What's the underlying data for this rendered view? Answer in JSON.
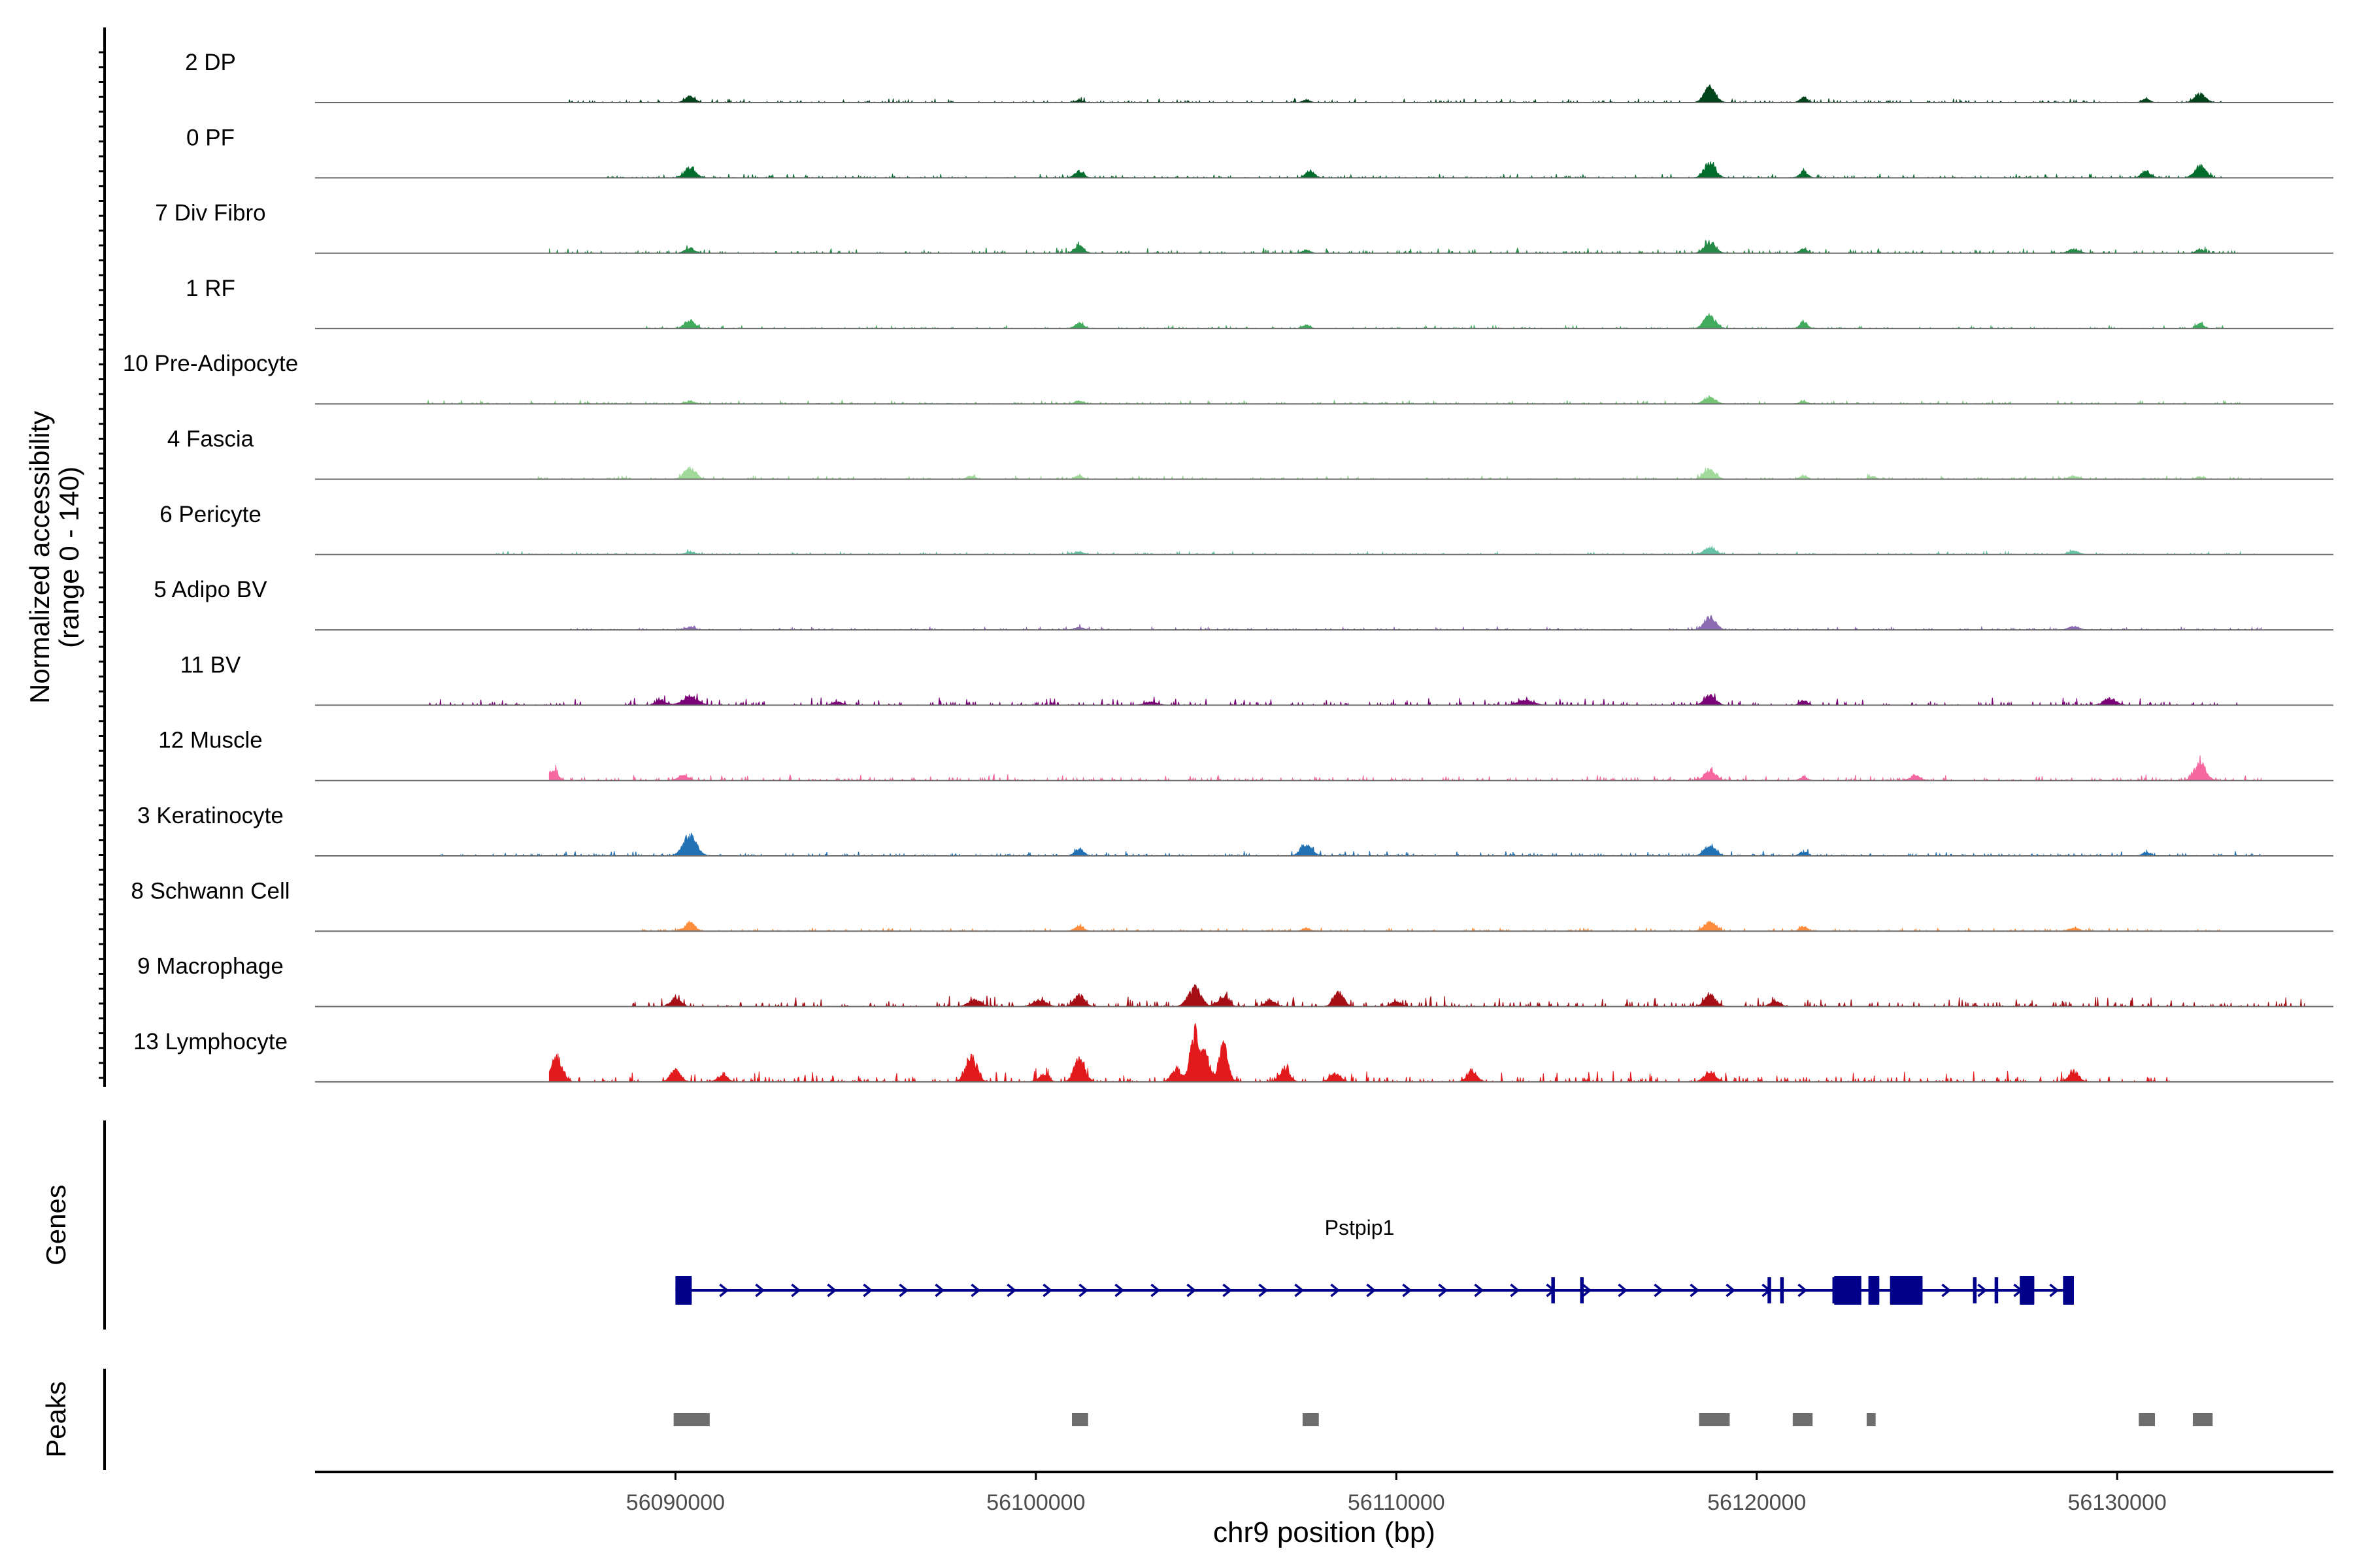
{
  "chart_data": {
    "type": "coverage",
    "region": {
      "chromosome": "chr9",
      "start": 56080000,
      "end": 56136000
    },
    "y_label_line1": "Normalized accessibility",
    "y_label_line2": "(range 0 - 140)",
    "y_range": [
      0,
      140
    ],
    "x_label": "chr9 position (bp)",
    "x_ticks": [
      {
        "value": 56090000,
        "label": "56090000"
      },
      {
        "value": 56100000,
        "label": "56100000"
      },
      {
        "value": 56110000,
        "label": "56110000"
      },
      {
        "value": 56120000,
        "label": "56120000"
      },
      {
        "value": 56130000,
        "label": "56130000"
      }
    ],
    "tracks": [
      {
        "name": "2 DP",
        "color": "#00441b",
        "segment": [
          56087000,
          56133000
        ],
        "noise": 1.2,
        "peaks": [
          [
            56090400,
            3.5,
            200
          ],
          [
            56101200,
            1.5,
            150
          ],
          [
            56107500,
            1.5,
            150
          ],
          [
            56118700,
            9,
            220
          ],
          [
            56121300,
            3,
            150
          ],
          [
            56130800,
            2,
            150
          ],
          [
            56132300,
            5,
            220
          ]
        ]
      },
      {
        "name": "0 PF",
        "color": "#006d2c",
        "segment": [
          56088000,
          56133000
        ],
        "noise": 1.2,
        "peaks": [
          [
            56090400,
            6,
            220
          ],
          [
            56101200,
            4,
            180
          ],
          [
            56107600,
            4,
            180
          ],
          [
            56118700,
            9,
            220
          ],
          [
            56121300,
            4,
            150
          ],
          [
            56130800,
            4,
            180
          ],
          [
            56132300,
            7,
            220
          ]
        ]
      },
      {
        "name": "7 Div Fibro",
        "color": "#238b45",
        "segment": [
          56086500,
          56133500
        ],
        "noise": 1.6,
        "peaks": [
          [
            56090400,
            3,
            200
          ],
          [
            56101200,
            5,
            180
          ],
          [
            56107500,
            2,
            150
          ],
          [
            56118700,
            6,
            220
          ],
          [
            56121300,
            2.5,
            150
          ],
          [
            56128800,
            2.5,
            200
          ],
          [
            56132300,
            2.5,
            150
          ]
        ]
      },
      {
        "name": "1 RF",
        "color": "#41ab5d",
        "segment": [
          56089000,
          56133000
        ],
        "noise": 0.9,
        "peaks": [
          [
            56090400,
            5,
            200
          ],
          [
            56101200,
            3,
            180
          ],
          [
            56107500,
            2,
            150
          ],
          [
            56118700,
            8,
            220
          ],
          [
            56121300,
            4,
            150
          ],
          [
            56132300,
            3,
            150
          ]
        ]
      },
      {
        "name": "10 Pre-Adipocyte",
        "color": "#74c476",
        "segment": [
          56083000,
          56133500
        ],
        "noise": 1.0,
        "peaks": [
          [
            56090400,
            1.5,
            200
          ],
          [
            56101200,
            1.5,
            180
          ],
          [
            56118700,
            4,
            220
          ],
          [
            56121300,
            1.5,
            150
          ]
        ]
      },
      {
        "name": "4 Fascia",
        "color": "#a1d99b",
        "segment": [
          56086000,
          56134000
        ],
        "noise": 1.1,
        "peaks": [
          [
            56090400,
            7,
            220
          ],
          [
            56098200,
            2,
            150
          ],
          [
            56101200,
            2,
            150
          ],
          [
            56118700,
            6,
            220
          ],
          [
            56121300,
            2,
            150
          ],
          [
            56123200,
            1.5,
            150
          ],
          [
            56128800,
            2,
            200
          ],
          [
            56132300,
            1.5,
            150
          ]
        ]
      },
      {
        "name": "6 Pericyte",
        "color": "#66c2a4",
        "segment": [
          56085000,
          56134000
        ],
        "noise": 0.9,
        "peaks": [
          [
            56090400,
            1.5,
            200
          ],
          [
            56101200,
            1.5,
            180
          ],
          [
            56118700,
            4,
            220
          ],
          [
            56128800,
            2,
            200
          ]
        ]
      },
      {
        "name": "5 Adipo BV",
        "color": "#8c6bb1",
        "segment": [
          56087000,
          56134000
        ],
        "noise": 0.9,
        "peaks": [
          [
            56090400,
            1.5,
            200
          ],
          [
            56101200,
            1.5,
            180
          ],
          [
            56118700,
            8,
            220
          ],
          [
            56128800,
            2,
            200
          ]
        ]
      },
      {
        "name": "11 BV",
        "color": "#7a0177",
        "segment": [
          56083000,
          56133500
        ],
        "noise": 2.2,
        "peaks": [
          [
            56090400,
            5,
            300
          ],
          [
            56089600,
            3,
            200
          ],
          [
            56094500,
            2,
            200
          ],
          [
            56103200,
            2,
            250
          ],
          [
            56113600,
            3,
            300
          ],
          [
            56118700,
            6,
            220
          ],
          [
            56121300,
            3,
            150
          ],
          [
            56129800,
            4,
            250
          ]
        ]
      },
      {
        "name": "12 Muscle",
        "color": "#f768a1",
        "segment": [
          56086500,
          56134000
        ],
        "noise": 1.8,
        "peaks": [
          [
            56086600,
            6,
            180
          ],
          [
            56090200,
            3,
            200
          ],
          [
            56118700,
            6,
            220
          ],
          [
            56121300,
            2,
            150
          ],
          [
            56124400,
            3,
            200
          ],
          [
            56132300,
            11,
            220
          ]
        ]
      },
      {
        "name": "3 Keratinocyte",
        "color": "#2171b5",
        "segment": [
          56083500,
          56134000
        ],
        "noise": 1.4,
        "peaks": [
          [
            56090400,
            12,
            260
          ],
          [
            56101200,
            4,
            180
          ],
          [
            56107500,
            7,
            220
          ],
          [
            56118700,
            6,
            220
          ],
          [
            56121300,
            2.5,
            150
          ],
          [
            56130800,
            2,
            150
          ]
        ]
      },
      {
        "name": "8 Schwann Cell",
        "color": "#fd8d3c",
        "segment": [
          56089000,
          56133000
        ],
        "noise": 1.0,
        "peaks": [
          [
            56090400,
            5,
            200
          ],
          [
            56101200,
            3,
            180
          ],
          [
            56107500,
            2,
            150
          ],
          [
            56118700,
            6,
            220
          ],
          [
            56121300,
            3,
            150
          ],
          [
            56128800,
            2,
            200
          ]
        ]
      },
      {
        "name": "9 Macrophage",
        "color": "#a50f15",
        "segment": [
          56088800,
          56135200
        ],
        "noise": 3.0,
        "peaks": [
          [
            56090000,
            5,
            200
          ],
          [
            56098300,
            4,
            250
          ],
          [
            56100100,
            4,
            250
          ],
          [
            56101200,
            7,
            200
          ],
          [
            56104400,
            11,
            250
          ],
          [
            56105200,
            6,
            200
          ],
          [
            56106500,
            4,
            200
          ],
          [
            56108400,
            8,
            200
          ],
          [
            56110000,
            3,
            200
          ],
          [
            56118700,
            7,
            220
          ],
          [
            56120500,
            3,
            200
          ]
        ]
      },
      {
        "name": "13 Lymphocyte",
        "color": "#e31a1c",
        "segment": [
          56086500,
          56131500
        ],
        "noise": 3.2,
        "peaks": [
          [
            56086700,
            14,
            220
          ],
          [
            56090000,
            7,
            200
          ],
          [
            56091300,
            4,
            200
          ],
          [
            56098200,
            15,
            220
          ],
          [
            56100200,
            4,
            200
          ],
          [
            56101200,
            14,
            200
          ],
          [
            56103900,
            8,
            200
          ],
          [
            56104400,
            30,
            160
          ],
          [
            56104700,
            18,
            150
          ],
          [
            56105200,
            22,
            180
          ],
          [
            56106900,
            7,
            200
          ],
          [
            56108300,
            5,
            200
          ],
          [
            56112100,
            6,
            200
          ],
          [
            56118700,
            6,
            220
          ],
          [
            56128800,
            6,
            200
          ]
        ]
      }
    ],
    "genes_label": "Genes",
    "gene": {
      "name": "Pstpip1",
      "color": "#00008b",
      "start": 56090000,
      "end": 56128800,
      "strand": "+",
      "exons": [
        [
          56090000,
          56090450
        ],
        [
          56114300,
          56114400
        ],
        [
          56115100,
          56115200
        ],
        [
          56120300,
          56120400
        ],
        [
          56120650,
          56120750
        ],
        [
          56122100,
          56122200
        ],
        [
          56122150,
          56122900
        ],
        [
          56123100,
          56123400
        ],
        [
          56123700,
          56124600
        ],
        [
          56126000,
          56126100
        ],
        [
          56126600,
          56126700
        ],
        [
          56127300,
          56127700
        ],
        [
          56128500,
          56128800
        ]
      ],
      "thick_exons": [
        [
          56090000,
          56090450
        ],
        [
          56122150,
          56122900
        ],
        [
          56123100,
          56123400
        ],
        [
          56123700,
          56124600
        ],
        [
          56127300,
          56127700
        ],
        [
          56128500,
          56128800
        ]
      ]
    },
    "peaks_label": "Peaks",
    "peaks": [
      [
        56089950,
        56090950
      ],
      [
        56101000,
        56101450
      ],
      [
        56107400,
        56107850
      ],
      [
        56118400,
        56119250
      ],
      [
        56121000,
        56121550
      ],
      [
        56123050,
        56123300
      ],
      [
        56130600,
        56131050
      ],
      [
        56132100,
        56132650
      ]
    ],
    "peaks_color": "#6e6e6e"
  }
}
